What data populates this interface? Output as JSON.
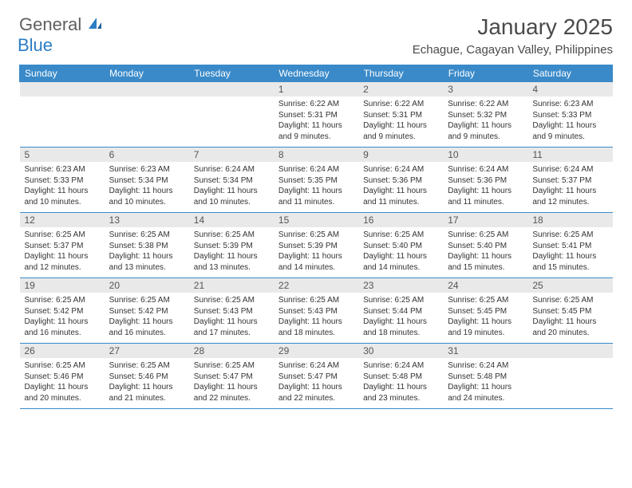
{
  "logo": {
    "word1": "General",
    "word2": "Blue"
  },
  "title": "January 2025",
  "location": "Echague, Cagayan Valley, Philippines",
  "colors": {
    "accent": "#3a8ac9",
    "daynum_bg": "#e9e9e9"
  },
  "day_headers": [
    "Sunday",
    "Monday",
    "Tuesday",
    "Wednesday",
    "Thursday",
    "Friday",
    "Saturday"
  ],
  "weeks": [
    [
      {
        "num": "",
        "sunrise": "",
        "sunset": "",
        "daylight": ""
      },
      {
        "num": "",
        "sunrise": "",
        "sunset": "",
        "daylight": ""
      },
      {
        "num": "",
        "sunrise": "",
        "sunset": "",
        "daylight": ""
      },
      {
        "num": "1",
        "sunrise": "Sunrise: 6:22 AM",
        "sunset": "Sunset: 5:31 PM",
        "daylight": "Daylight: 11 hours and 9 minutes."
      },
      {
        "num": "2",
        "sunrise": "Sunrise: 6:22 AM",
        "sunset": "Sunset: 5:31 PM",
        "daylight": "Daylight: 11 hours and 9 minutes."
      },
      {
        "num": "3",
        "sunrise": "Sunrise: 6:22 AM",
        "sunset": "Sunset: 5:32 PM",
        "daylight": "Daylight: 11 hours and 9 minutes."
      },
      {
        "num": "4",
        "sunrise": "Sunrise: 6:23 AM",
        "sunset": "Sunset: 5:33 PM",
        "daylight": "Daylight: 11 hours and 9 minutes."
      }
    ],
    [
      {
        "num": "5",
        "sunrise": "Sunrise: 6:23 AM",
        "sunset": "Sunset: 5:33 PM",
        "daylight": "Daylight: 11 hours and 10 minutes."
      },
      {
        "num": "6",
        "sunrise": "Sunrise: 6:23 AM",
        "sunset": "Sunset: 5:34 PM",
        "daylight": "Daylight: 11 hours and 10 minutes."
      },
      {
        "num": "7",
        "sunrise": "Sunrise: 6:24 AM",
        "sunset": "Sunset: 5:34 PM",
        "daylight": "Daylight: 11 hours and 10 minutes."
      },
      {
        "num": "8",
        "sunrise": "Sunrise: 6:24 AM",
        "sunset": "Sunset: 5:35 PM",
        "daylight": "Daylight: 11 hours and 11 minutes."
      },
      {
        "num": "9",
        "sunrise": "Sunrise: 6:24 AM",
        "sunset": "Sunset: 5:36 PM",
        "daylight": "Daylight: 11 hours and 11 minutes."
      },
      {
        "num": "10",
        "sunrise": "Sunrise: 6:24 AM",
        "sunset": "Sunset: 5:36 PM",
        "daylight": "Daylight: 11 hours and 11 minutes."
      },
      {
        "num": "11",
        "sunrise": "Sunrise: 6:24 AM",
        "sunset": "Sunset: 5:37 PM",
        "daylight": "Daylight: 11 hours and 12 minutes."
      }
    ],
    [
      {
        "num": "12",
        "sunrise": "Sunrise: 6:25 AM",
        "sunset": "Sunset: 5:37 PM",
        "daylight": "Daylight: 11 hours and 12 minutes."
      },
      {
        "num": "13",
        "sunrise": "Sunrise: 6:25 AM",
        "sunset": "Sunset: 5:38 PM",
        "daylight": "Daylight: 11 hours and 13 minutes."
      },
      {
        "num": "14",
        "sunrise": "Sunrise: 6:25 AM",
        "sunset": "Sunset: 5:39 PM",
        "daylight": "Daylight: 11 hours and 13 minutes."
      },
      {
        "num": "15",
        "sunrise": "Sunrise: 6:25 AM",
        "sunset": "Sunset: 5:39 PM",
        "daylight": "Daylight: 11 hours and 14 minutes."
      },
      {
        "num": "16",
        "sunrise": "Sunrise: 6:25 AM",
        "sunset": "Sunset: 5:40 PM",
        "daylight": "Daylight: 11 hours and 14 minutes."
      },
      {
        "num": "17",
        "sunrise": "Sunrise: 6:25 AM",
        "sunset": "Sunset: 5:40 PM",
        "daylight": "Daylight: 11 hours and 15 minutes."
      },
      {
        "num": "18",
        "sunrise": "Sunrise: 6:25 AM",
        "sunset": "Sunset: 5:41 PM",
        "daylight": "Daylight: 11 hours and 15 minutes."
      }
    ],
    [
      {
        "num": "19",
        "sunrise": "Sunrise: 6:25 AM",
        "sunset": "Sunset: 5:42 PM",
        "daylight": "Daylight: 11 hours and 16 minutes."
      },
      {
        "num": "20",
        "sunrise": "Sunrise: 6:25 AM",
        "sunset": "Sunset: 5:42 PM",
        "daylight": "Daylight: 11 hours and 16 minutes."
      },
      {
        "num": "21",
        "sunrise": "Sunrise: 6:25 AM",
        "sunset": "Sunset: 5:43 PM",
        "daylight": "Daylight: 11 hours and 17 minutes."
      },
      {
        "num": "22",
        "sunrise": "Sunrise: 6:25 AM",
        "sunset": "Sunset: 5:43 PM",
        "daylight": "Daylight: 11 hours and 18 minutes."
      },
      {
        "num": "23",
        "sunrise": "Sunrise: 6:25 AM",
        "sunset": "Sunset: 5:44 PM",
        "daylight": "Daylight: 11 hours and 18 minutes."
      },
      {
        "num": "24",
        "sunrise": "Sunrise: 6:25 AM",
        "sunset": "Sunset: 5:45 PM",
        "daylight": "Daylight: 11 hours and 19 minutes."
      },
      {
        "num": "25",
        "sunrise": "Sunrise: 6:25 AM",
        "sunset": "Sunset: 5:45 PM",
        "daylight": "Daylight: 11 hours and 20 minutes."
      }
    ],
    [
      {
        "num": "26",
        "sunrise": "Sunrise: 6:25 AM",
        "sunset": "Sunset: 5:46 PM",
        "daylight": "Daylight: 11 hours and 20 minutes."
      },
      {
        "num": "27",
        "sunrise": "Sunrise: 6:25 AM",
        "sunset": "Sunset: 5:46 PM",
        "daylight": "Daylight: 11 hours and 21 minutes."
      },
      {
        "num": "28",
        "sunrise": "Sunrise: 6:25 AM",
        "sunset": "Sunset: 5:47 PM",
        "daylight": "Daylight: 11 hours and 22 minutes."
      },
      {
        "num": "29",
        "sunrise": "Sunrise: 6:24 AM",
        "sunset": "Sunset: 5:47 PM",
        "daylight": "Daylight: 11 hours and 22 minutes."
      },
      {
        "num": "30",
        "sunrise": "Sunrise: 6:24 AM",
        "sunset": "Sunset: 5:48 PM",
        "daylight": "Daylight: 11 hours and 23 minutes."
      },
      {
        "num": "31",
        "sunrise": "Sunrise: 6:24 AM",
        "sunset": "Sunset: 5:48 PM",
        "daylight": "Daylight: 11 hours and 24 minutes."
      },
      {
        "num": "",
        "sunrise": "",
        "sunset": "",
        "daylight": ""
      }
    ]
  ]
}
